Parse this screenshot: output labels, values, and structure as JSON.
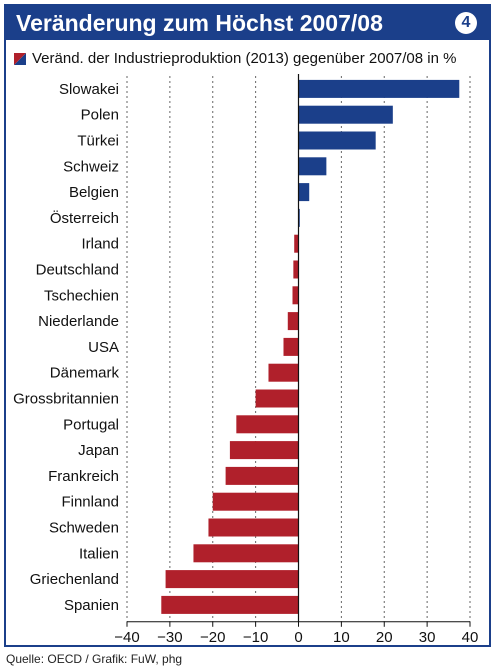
{
  "header": {
    "title": "Veränderung zum Höchst 2007/08",
    "badge": "4"
  },
  "legend": {
    "text": "Veränd. der Industrieproduktion (2013) gegenüber 2007/08 in %"
  },
  "source": "Quelle: OECD / Grafik: FuW, phg",
  "colors": {
    "frame": "#1b3f8a",
    "positive": "#1b3f8a",
    "negative": "#b0202b",
    "grid": "#666666"
  },
  "chart_data": {
    "type": "bar",
    "orientation": "horizontal",
    "title": "Veränderung zum Höchst 2007/08",
    "subtitle": "Veränd. der Industrieproduktion (2013) gegenüber 2007/08 in %",
    "categories": [
      "Slowakei",
      "Polen",
      "Türkei",
      "Schweiz",
      "Belgien",
      "Österreich",
      "Irland",
      "Deutschland",
      "Tschechien",
      "Niederlande",
      "USA",
      "Dänemark",
      "Grossbritannien",
      "Portugal",
      "Japan",
      "Frankreich",
      "Finnland",
      "Schweden",
      "Italien",
      "Griechenland",
      "Spanien"
    ],
    "values": [
      37.5,
      22,
      18,
      6.5,
      2.5,
      0.3,
      -1,
      -1.2,
      -1.4,
      -2.5,
      -3.5,
      -7,
      -10,
      -14.5,
      -16,
      -17,
      -20,
      -21,
      -24.5,
      -31,
      -32
    ],
    "xlim": [
      -40,
      40
    ],
    "xticks": [
      -40,
      -30,
      -20,
      -10,
      0,
      10,
      20,
      30,
      40
    ],
    "xtick_labels": [
      "−40",
      "−30",
      "−20",
      "−10",
      "0",
      "10",
      "20",
      "30",
      "40"
    ],
    "grid": "vertical dashed",
    "legend_position": "top-left"
  }
}
